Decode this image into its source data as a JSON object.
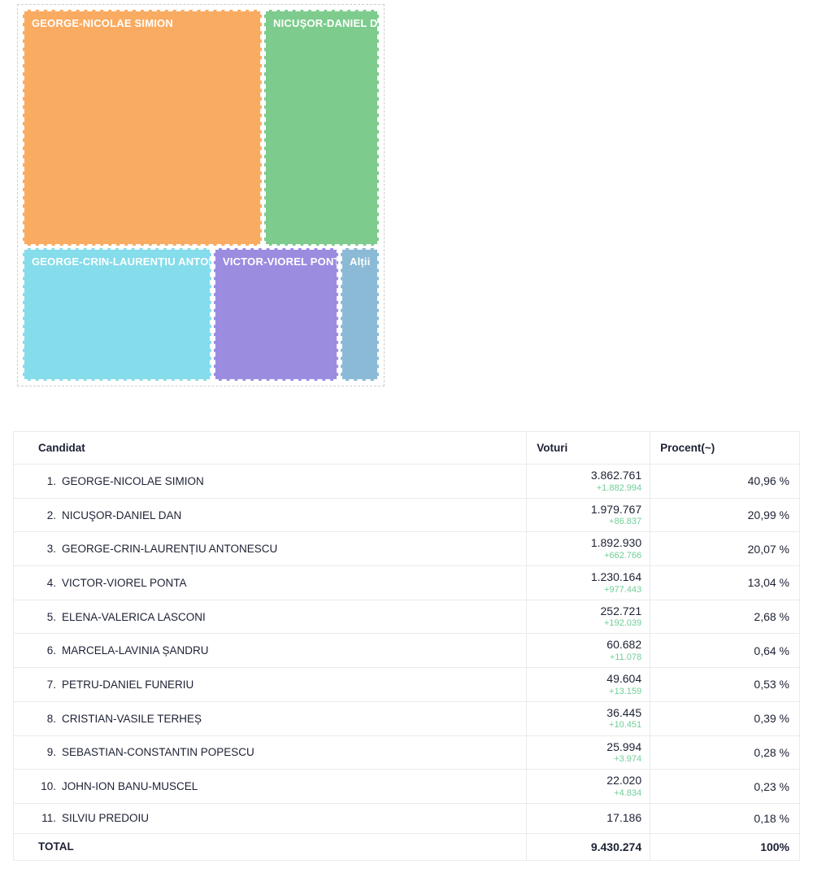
{
  "treemap": {
    "blocks": [
      {
        "label": "GEORGE-NICOLAE SIMION",
        "color": "#F9AB61"
      },
      {
        "label": "NICUŞOR-DANIEL DAN",
        "color": "#7DCB8D"
      },
      {
        "label": "GEORGE-CRIN-LAURENȚIU ANTONESCU",
        "color": "#85DCEA"
      },
      {
        "label": "VICTOR-VIOREL PONTA",
        "color": "#9C8CE0"
      },
      {
        "label": "Alții",
        "color": "#8BBAD6"
      }
    ]
  },
  "table": {
    "headers": {
      "candidate": "Candidat",
      "votes": "Voturi",
      "percent": "Procent(~)"
    },
    "rows": [
      {
        "rank": "1.",
        "name": "GEORGE-NICOLAE SIMION",
        "votes": "3.862.761",
        "delta": "+1.882.994",
        "percent": "40,96 %"
      },
      {
        "rank": "2.",
        "name": "NICUŞOR-DANIEL DAN",
        "votes": "1.979.767",
        "delta": "+86.837",
        "percent": "20,99 %"
      },
      {
        "rank": "3.",
        "name": "GEORGE-CRIN-LAURENȚIU ANTONESCU",
        "votes": "1.892.930",
        "delta": "+662.766",
        "percent": "20,07 %"
      },
      {
        "rank": "4.",
        "name": "VICTOR-VIOREL PONTA",
        "votes": "1.230.164",
        "delta": "+977.443",
        "percent": "13,04 %"
      },
      {
        "rank": "5.",
        "name": "ELENA-VALERICA LASCONI",
        "votes": "252.721",
        "delta": "+192.039",
        "percent": "2,68 %"
      },
      {
        "rank": "6.",
        "name": "MARCELA-LAVINIA ȘANDRU",
        "votes": "60.682",
        "delta": "+11.078",
        "percent": "0,64 %"
      },
      {
        "rank": "7.",
        "name": "PETRU-DANIEL FUNERIU",
        "votes": "49.604",
        "delta": "+13.159",
        "percent": "0,53 %"
      },
      {
        "rank": "8.",
        "name": "CRISTIAN-VASILE TERHEȘ",
        "votes": "36.445",
        "delta": "+10.451",
        "percent": "0,39 %"
      },
      {
        "rank": "9.",
        "name": "SEBASTIAN-CONSTANTIN POPESCU",
        "votes": "25.994",
        "delta": "+3.974",
        "percent": "0,28 %"
      },
      {
        "rank": "10.",
        "name": "JOHN-ION BANU-MUSCEL",
        "votes": "22.020",
        "delta": "+4.834",
        "percent": "0,23 %"
      },
      {
        "rank": "11.",
        "name": "SILVIU PREDOIU",
        "votes": "17.186",
        "delta": null,
        "percent": "0,18 %"
      }
    ],
    "total": {
      "label": "TOTAL",
      "votes": "9.430.274",
      "percent": "100%"
    }
  },
  "colors": {
    "delta_green": "#6FCF97",
    "text_dark": "#1D2134",
    "table_border": "#E9EAEE"
  },
  "chart_data": [
    {
      "type": "treemap",
      "title": "",
      "items": [
        {
          "label": "GEORGE-NICOLAE SIMION",
          "share_pct": 40.96,
          "color": "#F9AB61"
        },
        {
          "label": "NICUŞOR-DANIEL DAN",
          "share_pct": 20.99,
          "color": "#7DCB8D"
        },
        {
          "label": "GEORGE-CRIN-LAURENȚIU ANTONESCU",
          "share_pct": 20.07,
          "color": "#85DCEA"
        },
        {
          "label": "VICTOR-VIOREL PONTA",
          "share_pct": 13.04,
          "color": "#9C8CE0"
        },
        {
          "label": "Alții",
          "share_pct": 4.94,
          "color": "#8BBAD6"
        }
      ],
      "legend_position": "none"
    },
    {
      "type": "table",
      "columns": [
        "Candidat",
        "Voturi",
        "Procent(~)"
      ],
      "rows": [
        [
          1,
          "GEORGE-NICOLAE SIMION",
          3862761,
          1882994,
          40.96
        ],
        [
          2,
          "NICUŞOR-DANIEL DAN",
          1979767,
          86837,
          20.99
        ],
        [
          3,
          "GEORGE-CRIN-LAURENȚIU ANTONESCU",
          1892930,
          662766,
          20.07
        ],
        [
          4,
          "VICTOR-VIOREL PONTA",
          1230164,
          977443,
          13.04
        ],
        [
          5,
          "ELENA-VALERICA LASCONI",
          252721,
          192039,
          2.68
        ],
        [
          6,
          "MARCELA-LAVINIA ȘANDRU",
          60682,
          11078,
          0.64
        ],
        [
          7,
          "PETRU-DANIEL FUNERIU",
          49604,
          13159,
          0.53
        ],
        [
          8,
          "CRISTIAN-VASILE TERHEȘ",
          36445,
          10451,
          0.39
        ],
        [
          9,
          "SEBASTIAN-CONSTANTIN POPESCU",
          25994,
          3974,
          0.28
        ],
        [
          10,
          "JOHN-ION BANU-MUSCEL",
          22020,
          4834,
          0.23
        ],
        [
          11,
          "SILVIU PREDOIU",
          17186,
          null,
          0.18
        ]
      ],
      "total": {
        "votes": 9430274,
        "percent": 100
      }
    }
  ]
}
